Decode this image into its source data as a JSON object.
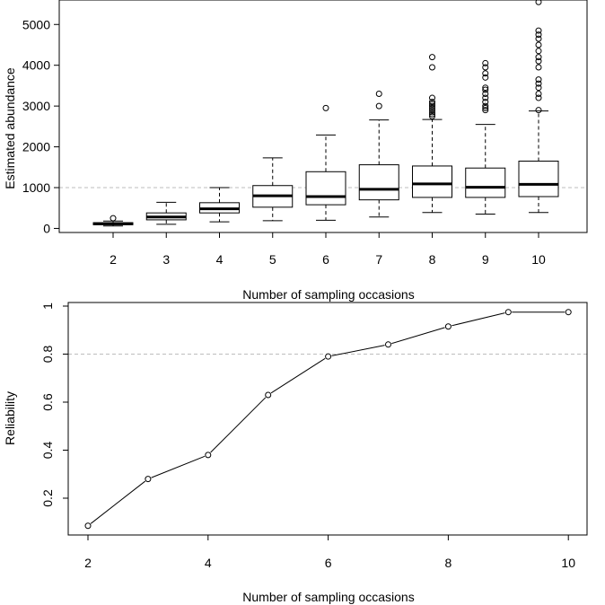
{
  "chart_data": [
    {
      "type": "boxplot",
      "xlabel": "Number of sampling occasions",
      "ylabel": "Estimated abundance",
      "ylim": [
        -100,
        5600
      ],
      "yticks": [
        0,
        1000,
        2000,
        3000,
        4000,
        5000
      ],
      "categories": [
        "2",
        "3",
        "4",
        "5",
        "6",
        "7",
        "8",
        "9",
        "10"
      ],
      "reference_line": 1000,
      "grid": false,
      "boxes": [
        {
          "min": 60,
          "q1": 90,
          "median": 115,
          "q3": 140,
          "max": 180,
          "outliers": [
            250
          ]
        },
        {
          "min": 100,
          "q1": 210,
          "median": 280,
          "q3": 380,
          "max": 640,
          "outliers": []
        },
        {
          "min": 160,
          "q1": 380,
          "median": 480,
          "q3": 630,
          "max": 1000,
          "outliers": []
        },
        {
          "min": 190,
          "q1": 520,
          "median": 800,
          "q3": 1050,
          "max": 1730,
          "outliers": []
        },
        {
          "min": 200,
          "q1": 580,
          "median": 780,
          "q3": 1390,
          "max": 2290,
          "outliers": [
            2950
          ]
        },
        {
          "min": 280,
          "q1": 700,
          "median": 960,
          "q3": 1560,
          "max": 2660,
          "outliers": [
            3000,
            3300
          ]
        },
        {
          "min": 390,
          "q1": 760,
          "median": 1090,
          "q3": 1530,
          "max": 2670,
          "outliers": [
            2750,
            2800,
            2850,
            2900,
            2950,
            3000,
            3050,
            3100,
            3200,
            3950,
            4200
          ]
        },
        {
          "min": 350,
          "q1": 760,
          "median": 1010,
          "q3": 1480,
          "max": 2550,
          "outliers": [
            2900,
            2950,
            3000,
            3100,
            3200,
            3300,
            3400,
            3450,
            3700,
            3800,
            3950,
            4050
          ]
        },
        {
          "min": 390,
          "q1": 780,
          "median": 1080,
          "q3": 1650,
          "max": 2880,
          "outliers": [
            2900,
            3200,
            3300,
            3450,
            3550,
            3650,
            3950,
            4100,
            4200,
            4350,
            4500,
            4650,
            4750,
            4850,
            5550
          ]
        }
      ]
    },
    {
      "type": "line",
      "xlabel": "Number of sampling occasions",
      "ylabel": "Reliability",
      "xlim": [
        1.8,
        10.3
      ],
      "ylim": [
        0.05,
        1.0
      ],
      "xticks": [
        2,
        4,
        6,
        8,
        10
      ],
      "yticks": [
        0.2,
        0.4,
        0.6,
        0.8,
        1.0
      ],
      "reference_line": 0.8,
      "grid": false,
      "x": [
        2,
        3,
        4,
        5,
        6,
        7,
        8,
        9,
        10
      ],
      "y": [
        0.085,
        0.28,
        0.38,
        0.63,
        0.79,
        0.84,
        0.915,
        0.975,
        0.975
      ]
    }
  ]
}
